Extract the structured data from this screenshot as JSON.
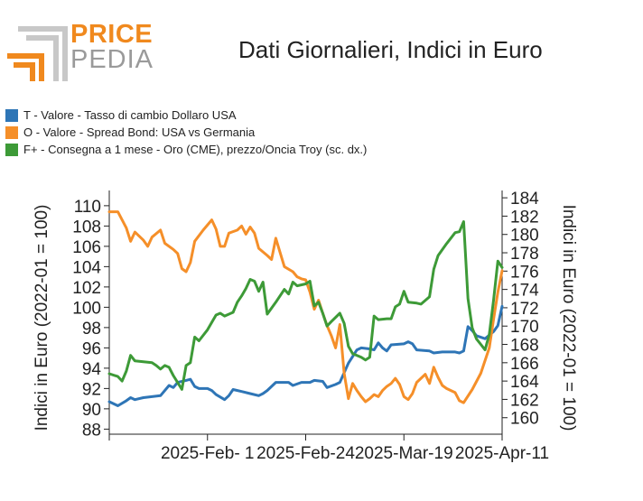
{
  "logo": {
    "word1": "PRICE",
    "word2": "PEDIA"
  },
  "chart_data": {
    "type": "line",
    "title": "Dati Giornalieri, Indici in Euro",
    "ylabel": "Indici in Euro (2022-01 = 100)",
    "y2label": "Indici in Euro (2022-01 = 100)",
    "ylim": [
      87.5,
      111.5
    ],
    "y2lim": [
      158.2,
      184.8
    ],
    "yticks": [
      "88",
      "90",
      "92",
      "94",
      "96",
      "98",
      "100",
      "102",
      "104",
      "106",
      "108",
      "110"
    ],
    "y2ticks": [
      "160",
      "162",
      "164",
      "166",
      "168",
      "170",
      "172",
      "174",
      "176",
      "178",
      "180",
      "182",
      "184"
    ],
    "xlim": [
      "2025-01-09",
      "2025-04-11"
    ],
    "xticks": [
      {
        "date": "2025-02-01",
        "label": "2025-Feb- 1"
      },
      {
        "date": "2025-02-24",
        "label": "2025-Feb-24"
      },
      {
        "date": "2025-03-19",
        "label": "2025-Mar-19"
      },
      {
        "date": "2025-04-11",
        "label": "2025-Apr-11"
      }
    ],
    "legend_position": "top-left",
    "series": [
      {
        "name": "T - Valore - Tasso di cambio Dollaro USA",
        "color": "#2e75b6",
        "axis": "left",
        "points": [
          [
            "2025-01-09",
            90.7
          ],
          [
            "2025-01-11",
            90.3
          ],
          [
            "2025-01-13",
            90.8
          ],
          [
            "2025-01-14",
            91.1
          ],
          [
            "2025-01-15",
            90.9
          ],
          [
            "2025-01-17",
            91.1
          ],
          [
            "2025-01-19",
            91.2
          ],
          [
            "2025-01-21",
            91.3
          ],
          [
            "2025-01-23",
            92.3
          ],
          [
            "2025-01-24",
            92.1
          ],
          [
            "2025-01-25",
            92.6
          ],
          [
            "2025-01-27",
            92.8
          ],
          [
            "2025-01-28",
            92.9
          ],
          [
            "2025-01-29",
            92.2
          ],
          [
            "2025-01-30",
            92.0
          ],
          [
            "2025-02-01",
            92.0
          ],
          [
            "2025-02-02",
            91.8
          ],
          [
            "2025-02-03",
            91.4
          ],
          [
            "2025-02-05",
            90.9
          ],
          [
            "2025-02-06",
            91.3
          ],
          [
            "2025-02-07",
            91.9
          ],
          [
            "2025-02-09",
            91.7
          ],
          [
            "2025-02-11",
            91.5
          ],
          [
            "2025-02-13",
            91.3
          ],
          [
            "2025-02-14",
            91.5
          ],
          [
            "2025-02-15",
            91.8
          ],
          [
            "2025-02-17",
            92.6
          ],
          [
            "2025-02-19",
            92.6
          ],
          [
            "2025-02-20",
            92.6
          ],
          [
            "2025-02-21",
            92.3
          ],
          [
            "2025-02-23",
            92.6
          ],
          [
            "2025-02-25",
            92.6
          ],
          [
            "2025-02-26",
            92.8
          ],
          [
            "2025-02-28",
            92.7
          ],
          [
            "2025-03-01",
            92.1
          ],
          [
            "2025-03-03",
            92.4
          ],
          [
            "2025-03-04",
            92.6
          ],
          [
            "2025-03-06",
            94.5
          ],
          [
            "2025-03-08",
            95.8
          ],
          [
            "2025-03-09",
            96.0
          ],
          [
            "2025-03-11",
            95.9
          ],
          [
            "2025-03-12",
            95.8
          ],
          [
            "2025-03-13",
            96.5
          ],
          [
            "2025-03-14",
            96.0
          ],
          [
            "2025-03-15",
            95.7
          ],
          [
            "2025-03-16",
            96.3
          ],
          [
            "2025-03-19",
            96.4
          ],
          [
            "2025-03-20",
            96.6
          ],
          [
            "2025-03-21",
            96.4
          ],
          [
            "2025-03-22",
            95.8
          ],
          [
            "2025-03-25",
            95.7
          ],
          [
            "2025-03-26",
            95.5
          ],
          [
            "2025-03-28",
            95.6
          ],
          [
            "2025-03-31",
            95.6
          ],
          [
            "2025-04-01",
            95.5
          ],
          [
            "2025-04-02",
            95.7
          ],
          [
            "2025-04-03",
            98.1
          ],
          [
            "2025-04-04",
            97.7
          ],
          [
            "2025-04-05",
            97.2
          ],
          [
            "2025-04-07",
            96.9
          ],
          [
            "2025-04-09",
            97.6
          ],
          [
            "2025-04-10",
            98.2
          ],
          [
            "2025-04-11",
            100.1
          ]
        ]
      },
      {
        "name": "O - Valore - Spread Bond: USA vs Germania",
        "color": "#f58f29",
        "axis": "left",
        "points": [
          [
            "2025-01-09",
            109.4
          ],
          [
            "2025-01-11",
            109.4
          ],
          [
            "2025-01-12",
            108.6
          ],
          [
            "2025-01-13",
            107.8
          ],
          [
            "2025-01-14",
            106.5
          ],
          [
            "2025-01-15",
            107.4
          ],
          [
            "2025-01-17",
            106.6
          ],
          [
            "2025-01-18",
            106.0
          ],
          [
            "2025-01-19",
            106.9
          ],
          [
            "2025-01-21",
            107.6
          ],
          [
            "2025-01-22",
            106.3
          ],
          [
            "2025-01-24",
            105.7
          ],
          [
            "2025-01-25",
            105.3
          ],
          [
            "2025-01-26",
            103.8
          ],
          [
            "2025-01-27",
            103.5
          ],
          [
            "2025-01-28",
            104.4
          ],
          [
            "2025-01-29",
            106.5
          ],
          [
            "2025-01-31",
            107.6
          ],
          [
            "2025-02-02",
            108.6
          ],
          [
            "2025-02-03",
            107.7
          ],
          [
            "2025-02-04",
            106.0
          ],
          [
            "2025-02-05",
            106.0
          ],
          [
            "2025-02-06",
            107.3
          ],
          [
            "2025-02-08",
            107.6
          ],
          [
            "2025-02-09",
            108.0
          ],
          [
            "2025-02-10",
            107.2
          ],
          [
            "2025-02-11",
            107.9
          ],
          [
            "2025-02-12",
            107.3
          ],
          [
            "2025-02-13",
            105.8
          ],
          [
            "2025-02-15",
            105.1
          ],
          [
            "2025-02-16",
            104.7
          ],
          [
            "2025-02-17",
            106.8
          ],
          [
            "2025-02-18",
            105.4
          ],
          [
            "2025-02-19",
            104.0
          ],
          [
            "2025-02-21",
            103.5
          ],
          [
            "2025-02-22",
            103.0
          ],
          [
            "2025-02-23",
            102.8
          ],
          [
            "2025-02-24",
            102.7
          ],
          [
            "2025-02-25",
            101.5
          ],
          [
            "2025-02-26",
            99.8
          ],
          [
            "2025-02-27",
            100.7
          ],
          [
            "2025-02-28",
            99.4
          ],
          [
            "2025-03-01",
            98.2
          ],
          [
            "2025-03-02",
            97.2
          ],
          [
            "2025-03-03",
            96.0
          ],
          [
            "2025-03-04",
            98.3
          ],
          [
            "2025-03-05",
            93.5
          ],
          [
            "2025-03-06",
            91.0
          ],
          [
            "2025-03-07",
            92.5
          ],
          [
            "2025-03-08",
            91.8
          ],
          [
            "2025-03-09",
            91.2
          ],
          [
            "2025-03-10",
            90.7
          ],
          [
            "2025-03-11",
            91.0
          ],
          [
            "2025-03-12",
            91.4
          ],
          [
            "2025-03-13",
            91.2
          ],
          [
            "2025-03-14",
            91.8
          ],
          [
            "2025-03-15",
            92.2
          ],
          [
            "2025-03-16",
            92.5
          ],
          [
            "2025-03-17",
            93.0
          ],
          [
            "2025-03-18",
            92.4
          ],
          [
            "2025-03-19",
            91.2
          ],
          [
            "2025-03-20",
            90.9
          ],
          [
            "2025-03-21",
            91.5
          ],
          [
            "2025-03-22",
            92.6
          ],
          [
            "2025-03-24",
            93.4
          ],
          [
            "2025-03-25",
            92.5
          ],
          [
            "2025-03-26",
            94.1
          ],
          [
            "2025-03-27",
            93.1
          ],
          [
            "2025-03-28",
            92.3
          ],
          [
            "2025-03-29",
            92.0
          ],
          [
            "2025-03-31",
            91.6
          ],
          [
            "2025-04-01",
            90.8
          ],
          [
            "2025-04-02",
            90.6
          ],
          [
            "2025-04-04",
            91.9
          ],
          [
            "2025-04-06",
            93.5
          ],
          [
            "2025-04-08",
            96.0
          ],
          [
            "2025-04-09",
            98.8
          ],
          [
            "2025-04-10",
            101.5
          ],
          [
            "2025-04-11",
            103.6
          ]
        ]
      },
      {
        "name": "F+ - Consegna a 1 mese - Oro (CME), prezzo/Oncia Troy (sc. dx.)",
        "color": "#3d9a37",
        "axis": "right",
        "points": [
          [
            "2025-01-09",
            164.8
          ],
          [
            "2025-01-11",
            164.5
          ],
          [
            "2025-01-12",
            164.0
          ],
          [
            "2025-01-13",
            165.1
          ],
          [
            "2025-01-14",
            166.8
          ],
          [
            "2025-01-15",
            166.2
          ],
          [
            "2025-01-17",
            166.1
          ],
          [
            "2025-01-19",
            166.0
          ],
          [
            "2025-01-20",
            165.7
          ],
          [
            "2025-01-21",
            165.3
          ],
          [
            "2025-01-22",
            165.7
          ],
          [
            "2025-01-23",
            165.5
          ],
          [
            "2025-01-24",
            164.6
          ],
          [
            "2025-01-26",
            163.1
          ],
          [
            "2025-01-27",
            165.7
          ],
          [
            "2025-01-28",
            166.0
          ],
          [
            "2025-01-29",
            168.8
          ],
          [
            "2025-01-30",
            168.4
          ],
          [
            "2025-02-01",
            169.6
          ],
          [
            "2025-02-03",
            171.2
          ],
          [
            "2025-02-04",
            171.4
          ],
          [
            "2025-02-05",
            171.1
          ],
          [
            "2025-02-07",
            171.5
          ],
          [
            "2025-02-08",
            172.6
          ],
          [
            "2025-02-09",
            173.3
          ],
          [
            "2025-02-10",
            174.1
          ],
          [
            "2025-02-11",
            175.1
          ],
          [
            "2025-02-12",
            174.9
          ],
          [
            "2025-02-13",
            173.8
          ],
          [
            "2025-02-14",
            174.8
          ],
          [
            "2025-02-15",
            171.3
          ],
          [
            "2025-02-17",
            172.6
          ],
          [
            "2025-02-19",
            174.0
          ],
          [
            "2025-02-20",
            173.5
          ],
          [
            "2025-02-21",
            174.8
          ],
          [
            "2025-02-22",
            174.4
          ],
          [
            "2025-02-24",
            174.6
          ],
          [
            "2025-02-25",
            174.9
          ],
          [
            "2025-02-26",
            172.2
          ],
          [
            "2025-02-27",
            172.6
          ],
          [
            "2025-02-28",
            171.4
          ],
          [
            "2025-03-01",
            170.0
          ],
          [
            "2025-03-02",
            170.5
          ],
          [
            "2025-03-04",
            171.4
          ],
          [
            "2025-03-05",
            170.3
          ],
          [
            "2025-03-06",
            167.8
          ],
          [
            "2025-03-07",
            167.0
          ],
          [
            "2025-03-09",
            166.6
          ],
          [
            "2025-03-10",
            166.3
          ],
          [
            "2025-03-11",
            166.6
          ],
          [
            "2025-03-12",
            171.1
          ],
          [
            "2025-03-13",
            170.7
          ],
          [
            "2025-03-15",
            170.8
          ],
          [
            "2025-03-16",
            170.8
          ],
          [
            "2025-03-17",
            172.1
          ],
          [
            "2025-03-18",
            172.4
          ],
          [
            "2025-03-19",
            173.8
          ],
          [
            "2025-03-20",
            172.6
          ],
          [
            "2025-03-22",
            172.5
          ],
          [
            "2025-03-23",
            172.4
          ],
          [
            "2025-03-25",
            173.2
          ],
          [
            "2025-03-26",
            176.2
          ],
          [
            "2025-03-27",
            177.7
          ],
          [
            "2025-03-29",
            179.0
          ],
          [
            "2025-03-31",
            180.2
          ],
          [
            "2025-04-01",
            180.3
          ],
          [
            "2025-04-02",
            181.4
          ],
          [
            "2025-04-03",
            173.0
          ],
          [
            "2025-04-04",
            169.8
          ],
          [
            "2025-04-05",
            168.6
          ],
          [
            "2025-04-06",
            168.0
          ],
          [
            "2025-04-07",
            167.4
          ],
          [
            "2025-04-08",
            169.1
          ],
          [
            "2025-04-09",
            172.8
          ],
          [
            "2025-04-10",
            177.1
          ],
          [
            "2025-04-11",
            176.4
          ]
        ]
      }
    ]
  }
}
